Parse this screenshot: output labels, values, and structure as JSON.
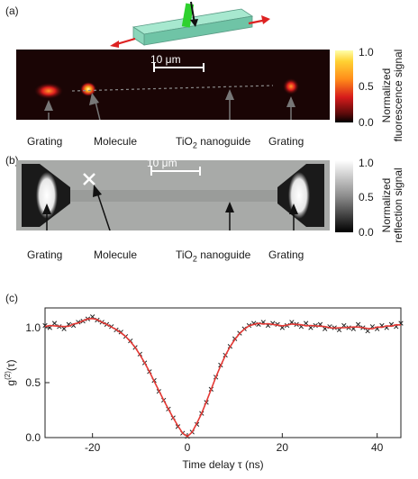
{
  "panel_a": {
    "label": "(a)",
    "scalebar": "10 μm",
    "annotations": [
      "Grating",
      "Molecule",
      "TiO",
      "2",
      " nanoguide",
      "Grating"
    ],
    "colorbar": {
      "ticks": [
        "1.0",
        "0.5",
        "0.0"
      ],
      "title_line1": "Normalized",
      "title_line2": "fluorescence signal"
    },
    "colors": {
      "hot_low": "#000000",
      "hot_mid": "#cc0000",
      "hot_high": "#ffff66"
    }
  },
  "panel_b": {
    "label": "(b)",
    "scalebar": "10 μm",
    "annotations": [
      "Grating",
      "Molecule",
      "TiO",
      "2",
      " nanoguide",
      "Grating"
    ],
    "colorbar": {
      "ticks": [
        "1.0",
        "0.5",
        "0.0"
      ],
      "title_line1": "Normalized",
      "title_line2": "reflection signal"
    }
  },
  "panel_c": {
    "label": "(c)",
    "chart_data": {
      "type": "scatter",
      "xlabel": "Time delay τ (ns)",
      "ylabel": "g(2)(τ)",
      "ylabel_main": "g",
      "ylabel_sup": "(2)",
      "ylabel_tail": "(τ)",
      "xlim": [
        -30,
        45
      ],
      "ylim": [
        0,
        1.18
      ],
      "xticks": [
        -20,
        0,
        20,
        40
      ],
      "yticks": [
        "0.0",
        "0.5",
        "1.0"
      ],
      "ytick_values": [
        0,
        0.5,
        1.0
      ],
      "series": [
        {
          "marker": "x",
          "color": "#222222",
          "x": [
            -30,
            -29,
            -28,
            -27,
            -26,
            -25,
            -24,
            -23,
            -22,
            -21,
            -20,
            -19,
            -18,
            -17,
            -16,
            -15,
            -14,
            -13,
            -12,
            -11,
            -10,
            -9,
            -8,
            -7,
            -6,
            -5,
            -4,
            -3,
            -2,
            -1,
            0,
            1,
            2,
            3,
            4,
            5,
            6,
            7,
            8,
            9,
            10,
            11,
            12,
            13,
            14,
            15,
            16,
            17,
            18,
            19,
            20,
            21,
            22,
            23,
            24,
            25,
            26,
            27,
            28,
            29,
            30,
            31,
            32,
            33,
            34,
            35,
            36,
            37,
            38,
            39,
            40,
            41,
            42,
            43,
            44,
            45
          ],
          "y": [
            1.02,
            1.0,
            1.04,
            1.01,
            0.99,
            1.03,
            1.02,
            1.05,
            1.06,
            1.08,
            1.1,
            1.07,
            1.05,
            1.03,
            1.01,
            0.98,
            0.96,
            0.92,
            0.88,
            0.82,
            0.76,
            0.68,
            0.6,
            0.52,
            0.42,
            0.34,
            0.26,
            0.18,
            0.1,
            0.04,
            0.01,
            0.05,
            0.12,
            0.22,
            0.32,
            0.44,
            0.55,
            0.66,
            0.75,
            0.83,
            0.9,
            0.95,
            0.99,
            1.02,
            1.04,
            1.03,
            1.05,
            1.02,
            1.04,
            1.03,
            1.0,
            1.02,
            1.05,
            1.03,
            1.01,
            1.04,
            1.0,
            1.02,
            1.03,
            0.99,
            1.01,
            1.0,
            0.98,
            1.02,
            1.0,
            0.99,
            1.03,
            1.0,
            0.97,
            1.01,
            0.99,
            1.02,
            1.0,
            1.03,
            1.01,
            1.04
          ]
        },
        {
          "marker": "line",
          "color": "#e53935"
        }
      ]
    }
  }
}
